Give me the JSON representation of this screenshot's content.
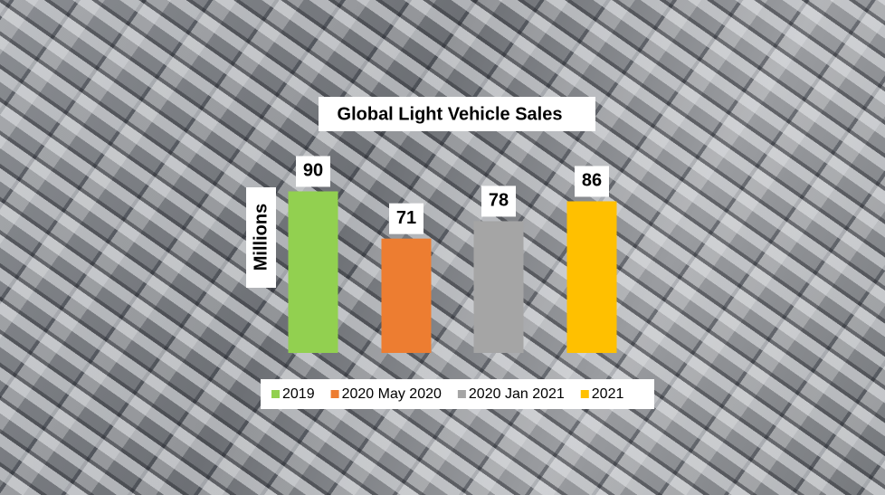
{
  "chart_data": {
    "type": "bar",
    "title": "Global Light Vehicle Sales",
    "y_label": "Millions",
    "series": [
      {
        "name": "2019",
        "color": "#92d050",
        "values": [
          90
        ]
      },
      {
        "name": "2020 May 2020",
        "color": "#ed7d31",
        "values": [
          71
        ]
      },
      {
        "name": "2020 Jan 2021",
        "color": "#a5a5a5",
        "values": [
          78
        ]
      },
      {
        "name": "2021",
        "color": "#ffc000",
        "values": [
          86
        ]
      }
    ],
    "ylim": [
      25,
      100
    ],
    "legend": "bottom"
  }
}
